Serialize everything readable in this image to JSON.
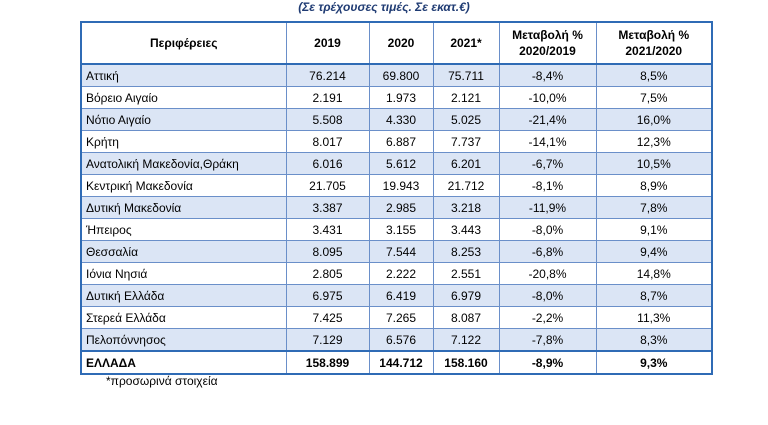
{
  "subtitle": "(Σε τρέχουσες τιμές. Σε εκατ.€)",
  "table": {
    "headers": {
      "region": "Περιφέρειες",
      "y2019": "2019",
      "y2020": "2020",
      "y2021": "2021*",
      "change1_line1": "Μεταβολή %",
      "change1_line2": "2020/2019",
      "change2_line1": "Μεταβολή %",
      "change2_line2": "2021/2020"
    },
    "rows": [
      [
        "Αττική",
        "76.214",
        "69.800",
        "75.711",
        "-8,4%",
        "8,5%"
      ],
      [
        "Βόρειο Αιγαίο",
        "2.191",
        "1.973",
        "2.121",
        "-10,0%",
        "7,5%"
      ],
      [
        "Νότιο Αιγαίο",
        "5.508",
        "4.330",
        "5.025",
        "-21,4%",
        "16,0%"
      ],
      [
        "Κρήτη",
        "8.017",
        "6.887",
        "7.737",
        "-14,1%",
        "12,3%"
      ],
      [
        "Ανατολική Μακεδονία,Θράκη",
        "6.016",
        "5.612",
        "6.201",
        "-6,7%",
        "10,5%"
      ],
      [
        "Κεντρική Μακεδονία",
        "21.705",
        "19.943",
        "21.712",
        "-8,1%",
        "8,9%"
      ],
      [
        "Δυτική Μακεδονία",
        "3.387",
        "2.985",
        "3.218",
        "-11,9%",
        "7,8%"
      ],
      [
        "Ήπειρος",
        "3.431",
        "3.155",
        "3.443",
        "-8,0%",
        "9,1%"
      ],
      [
        "Θεσσαλία",
        "8.095",
        "7.544",
        "8.253",
        "-6,8%",
        "9,4%"
      ],
      [
        "Ιόνια Νησιά",
        "2.805",
        "2.222",
        "2.551",
        "-20,8%",
        "14,8%"
      ],
      [
        "Δυτική Ελλάδα",
        "6.975",
        "6.419",
        "6.979",
        "-8,0%",
        "8,7%"
      ],
      [
        "Στερεά Ελλάδα",
        "7.425",
        "7.265",
        "8.087",
        "-2,2%",
        "11,3%"
      ],
      [
        "Πελοπόννησος",
        "7.129",
        "6.576",
        "7.122",
        "-7,8%",
        "8,3%"
      ]
    ],
    "total": [
      "ΕΛΛΑΔΑ",
      "158.899",
      "144.712",
      "158.160",
      "-8,9%",
      "9,3%"
    ]
  },
  "footnote": "*προσωρινά στοιχεία",
  "colors": {
    "border": "#2f6bb5",
    "stripe": "#dbe5f5",
    "subtitle": "#1f3b73"
  }
}
